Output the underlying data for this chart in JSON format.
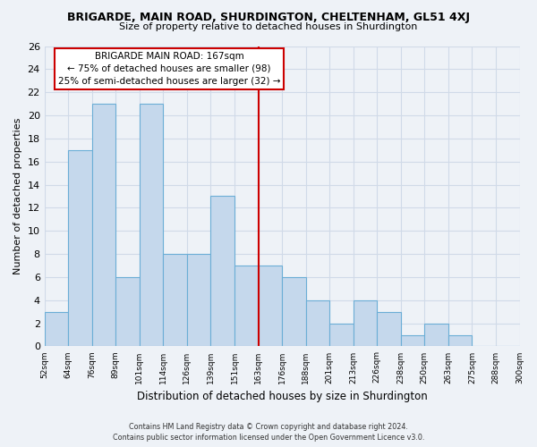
{
  "title": "BRIGARDE, MAIN ROAD, SHURDINGTON, CHELTENHAM, GL51 4XJ",
  "subtitle": "Size of property relative to detached houses in Shurdington",
  "xlabel": "Distribution of detached houses by size in Shurdington",
  "ylabel": "Number of detached properties",
  "bin_labels": [
    "52sqm",
    "64sqm",
    "76sqm",
    "89sqm",
    "101sqm",
    "114sqm",
    "126sqm",
    "139sqm",
    "151sqm",
    "163sqm",
    "176sqm",
    "188sqm",
    "201sqm",
    "213sqm",
    "226sqm",
    "238sqm",
    "250sqm",
    "263sqm",
    "275sqm",
    "288sqm",
    "300sqm"
  ],
  "bar_heights": [
    3,
    17,
    21,
    6,
    21,
    8,
    8,
    13,
    7,
    7,
    6,
    4,
    2,
    4,
    3,
    1,
    2,
    1,
    0,
    0
  ],
  "bar_color": "#c5d8ec",
  "bar_edge_color": "#6baed6",
  "ylim": [
    0,
    26
  ],
  "yticks": [
    0,
    2,
    4,
    6,
    8,
    10,
    12,
    14,
    16,
    18,
    20,
    22,
    24,
    26
  ],
  "vline_x_index": 9,
  "annotation_title": "BRIGARDE MAIN ROAD: 167sqm",
  "annotation_line1": "← 75% of detached houses are smaller (98)",
  "annotation_line2": "25% of semi-detached houses are larger (32) →",
  "annotation_box_color": "#ffffff",
  "annotation_box_edge": "#cc0000",
  "vline_color": "#cc0000",
  "footer1": "Contains HM Land Registry data © Crown copyright and database right 2024.",
  "footer2": "Contains public sector information licensed under the Open Government Licence v3.0.",
  "background_color": "#eef2f7",
  "grid_color": "#d0dae8"
}
